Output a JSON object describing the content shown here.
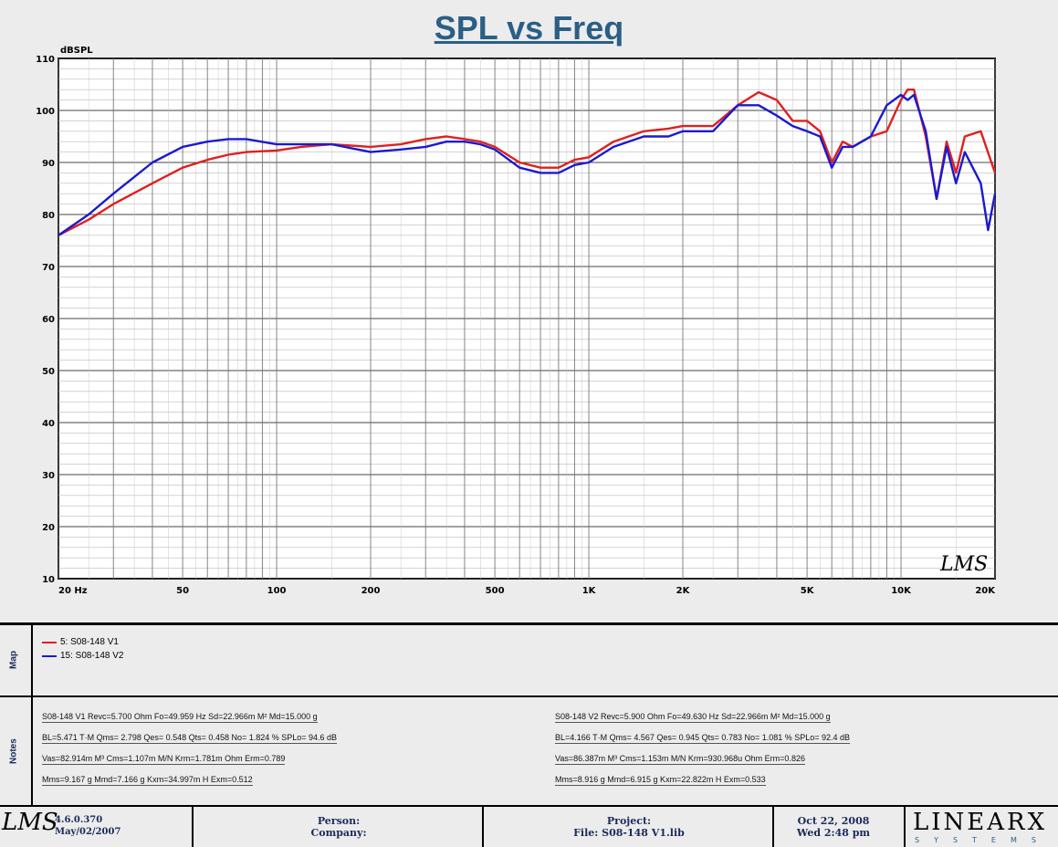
{
  "chart_data": {
    "type": "line",
    "title": "SPL vs Freq",
    "ylabel": "dBSPL",
    "xscale": "log",
    "xlim": [
      20,
      20000
    ],
    "ylim": [
      10,
      110
    ],
    "yticks": [
      110,
      100,
      90,
      80,
      70,
      60,
      50,
      40,
      30,
      20,
      10
    ],
    "xticks": [
      {
        "value": 20,
        "label": "20 Hz"
      },
      {
        "value": 50,
        "label": "50"
      },
      {
        "value": 100,
        "label": "100"
      },
      {
        "value": 200,
        "label": "200"
      },
      {
        "value": 500,
        "label": "500"
      },
      {
        "value": 1000,
        "label": "1K"
      },
      {
        "value": 2000,
        "label": "2K"
      },
      {
        "value": 5000,
        "label": "5K"
      },
      {
        "value": 10000,
        "label": "10K"
      },
      {
        "value": 20000,
        "label": "20K"
      }
    ],
    "grid": true,
    "watermark": "LMS",
    "series": [
      {
        "name": "5: S08-148 V1",
        "color": "#e02020",
        "x": [
          20,
          25,
          30,
          40,
          50,
          60,
          70,
          80,
          100,
          120,
          150,
          200,
          250,
          300,
          350,
          400,
          450,
          500,
          600,
          700,
          800,
          900,
          1000,
          1200,
          1500,
          1800,
          2000,
          2500,
          3000,
          3500,
          4000,
          4500,
          5000,
          5500,
          6000,
          6500,
          7000,
          8000,
          9000,
          10000,
          10500,
          11000,
          12000,
          13000,
          14000,
          15000,
          16000,
          18000,
          20000
        ],
        "y": [
          76,
          79,
          82,
          86,
          89,
          90.5,
          91.5,
          92,
          92.3,
          93,
          93.5,
          93,
          93.5,
          94.5,
          95,
          94.5,
          94,
          93,
          90,
          89,
          89,
          90.5,
          91,
          94,
          96,
          96.5,
          97,
          97,
          101,
          103.5,
          102,
          98,
          98,
          96,
          90,
          94,
          93,
          95,
          96,
          102,
          104,
          104,
          95,
          83,
          94,
          88,
          95,
          96,
          88
        ]
      },
      {
        "name": "15: S08-148 V2",
        "color": "#1a1ad0",
        "x": [
          20,
          25,
          30,
          40,
          50,
          60,
          70,
          80,
          100,
          120,
          150,
          200,
          250,
          300,
          350,
          400,
          450,
          500,
          600,
          700,
          800,
          900,
          1000,
          1200,
          1500,
          1800,
          2000,
          2500,
          3000,
          3500,
          4000,
          4500,
          5000,
          5500,
          6000,
          6500,
          7000,
          8000,
          9000,
          10000,
          10500,
          11000,
          12000,
          13000,
          14000,
          15000,
          16000,
          18000,
          19000,
          20000
        ],
        "y": [
          76,
          80,
          84,
          90,
          93,
          94,
          94.5,
          94.5,
          93.5,
          93.5,
          93.5,
          92,
          92.5,
          93,
          94,
          94,
          93.5,
          92.5,
          89,
          88,
          88,
          89.5,
          90,
          93,
          95,
          95,
          96,
          96,
          101,
          101,
          99,
          97,
          96,
          95,
          89,
          93,
          93,
          95,
          101,
          103,
          102,
          103,
          96,
          83,
          93,
          86,
          92,
          86,
          77,
          84
        ]
      }
    ]
  },
  "map_panel": {
    "label": "Map",
    "entries": [
      {
        "text": "5: S08-148 V1",
        "color": "#e02020"
      },
      {
        "text": "15: S08-148 V2",
        "color": "#1a1ad0"
      }
    ]
  },
  "notes_panel": {
    "label": "Notes",
    "left": [
      "S08-148 V1 Revc=5.700 Ohm  Fo=49.959 Hz  Sd=22.966m M² Md=15.000 g",
      "BL=5.471 T·M  Qms= 2.798  Qes= 0.548  Qts= 0.458  No= 1.824 %  SPLo= 94.6 dB",
      "Vas=82.914m M³  Cms=1.107m M/N  Krm=1.781m Ohm  Erm=0.789",
      "Mms=9.167 g  Mmd=7.166 g  Kxm=34.997m H  Exm=0.512"
    ],
    "right": [
      "S08-148 V2 Revc=5.900 Ohm  Fo=49.630 Hz  Sd=22.966m M² Md=15.000 g",
      "BL=4.166 T·M  Qms= 4.567  Qes= 0.945  Qts= 0.783  No= 1.081 %  SPLo= 92.4 dB",
      "Vas=86.387m M³  Cms=1.153m M/N  Krm=930.968u Ohm  Erm=0.826",
      "Mms=8.916 g  Mmd=6.915 g  Kxm=22.822m H  Exm=0.533"
    ]
  },
  "footer": {
    "logo": "LMS",
    "version": "4.6.0.370",
    "version_date": "May/02/2007",
    "person": "Person:",
    "company": "Company:",
    "project": "Project:",
    "file": "File: S08-148 V1.lib",
    "date": "Oct 22, 2008",
    "time": "Wed  2:48 pm",
    "brand": "LINEARX",
    "brand_sub": "SYSTEMS"
  }
}
